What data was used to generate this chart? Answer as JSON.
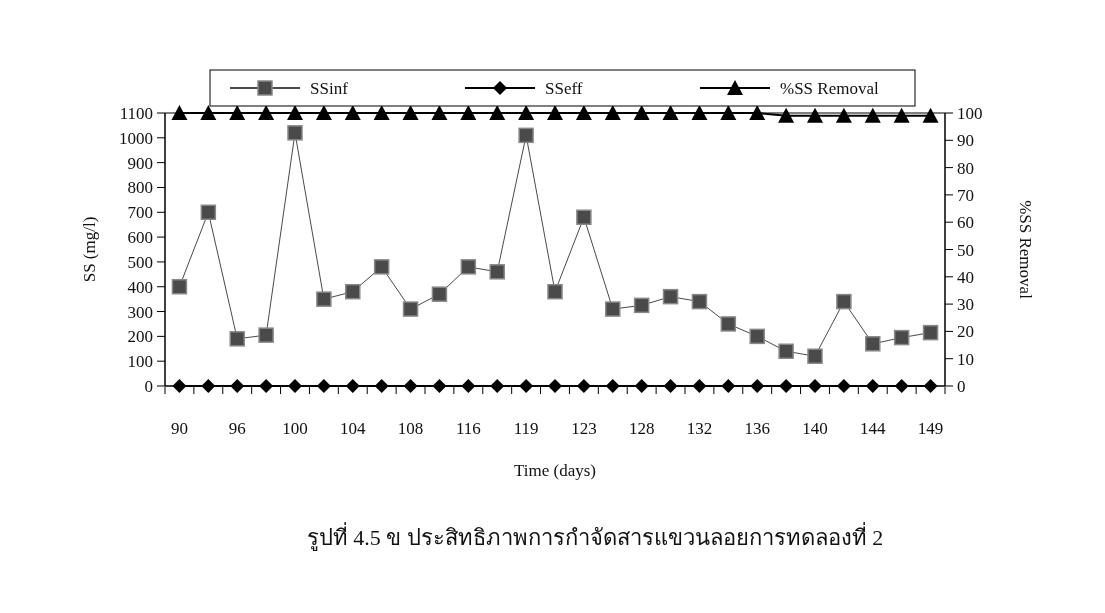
{
  "chart_data": {
    "type": "line",
    "xlabel": "Time (days)",
    "ylabel": "SS (mg/l)",
    "y2label": "%SS Removal",
    "legend": "top",
    "categories": [
      "90",
      null,
      "96",
      null,
      "100",
      null,
      "104",
      null,
      "108",
      null,
      "116",
      null,
      "119",
      null,
      "123",
      null,
      "128",
      null,
      "132",
      null,
      "136",
      null,
      "140",
      null,
      "144",
      null,
      "149"
    ],
    "ylim": [
      0,
      1100
    ],
    "yticks": [
      0,
      100,
      200,
      300,
      400,
      500,
      600,
      700,
      800,
      900,
      1000,
      1100
    ],
    "y2lim": [
      0,
      100
    ],
    "y2ticks": [
      0,
      10,
      20,
      30,
      40,
      50,
      60,
      70,
      80,
      90,
      100
    ],
    "series": [
      {
        "name": "SSinf",
        "color": "#4a4a4a",
        "marker": "square",
        "values": [
          400,
          700,
          190,
          205,
          1020,
          350,
          380,
          480,
          310,
          370,
          480,
          460,
          1010,
          380,
          680,
          310,
          325,
          360,
          340,
          250,
          200,
          140,
          120,
          340,
          170,
          195,
          215
        ]
      },
      {
        "name": "SSeff",
        "color": "#000000",
        "marker": "diamond",
        "values": [
          0,
          0,
          0,
          0,
          0,
          0,
          0,
          0,
          0,
          0,
          0,
          0,
          0,
          0,
          0,
          0,
          0,
          0,
          0,
          0,
          0,
          0,
          0,
          0,
          0,
          0,
          0
        ]
      },
      {
        "name": "%SS Removal",
        "color": "#000000",
        "marker": "triangle",
        "axis": "y2",
        "values": [
          100,
          100,
          100,
          100,
          100,
          100,
          100,
          100,
          100,
          100,
          100,
          100,
          100,
          100,
          100,
          100,
          100,
          100,
          100,
          100,
          100,
          99,
          99,
          99,
          99,
          99,
          99
        ]
      }
    ],
    "annotations": [
      "รูปที่ 4.5 ข ประสิทธิภาพการกำจัดสารแขวนลอยการทดลองที่ 2"
    ]
  }
}
